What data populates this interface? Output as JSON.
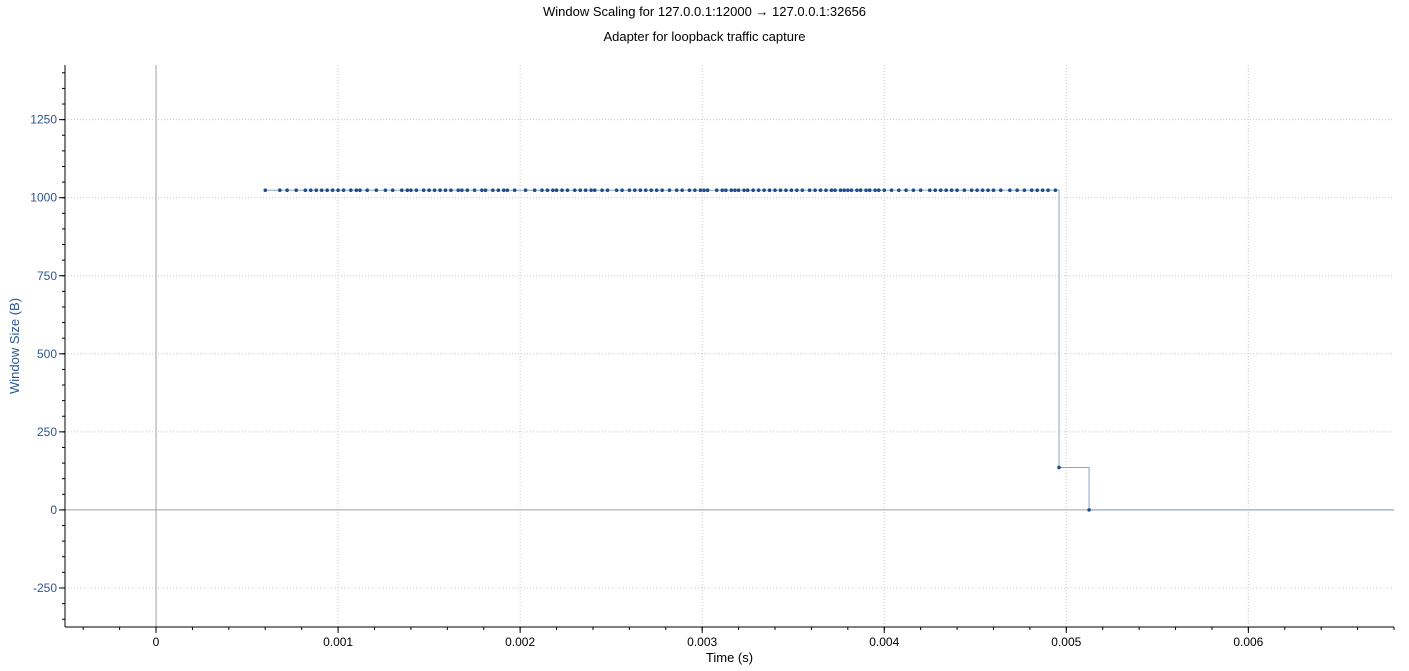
{
  "chart_data": {
    "type": "line",
    "title": "Window Scaling for 127.0.0.1:12000 → 127.0.0.1:32656",
    "subtitle": "Adapter for loopback traffic capture",
    "xlabel": "Time (s)",
    "ylabel": "Window Size (B)",
    "xlim": [
      -0.0005,
      0.0068
    ],
    "ylim": [
      -375,
      1425
    ],
    "x_ticks": [
      0,
      0.001,
      0.002,
      0.003,
      0.004,
      0.005,
      0.006
    ],
    "x_tick_labels": [
      "0",
      "0.001",
      "0.002",
      "0.003",
      "0.004",
      "0.005",
      "0.006"
    ],
    "y_ticks": [
      -250,
      0,
      250,
      500,
      750,
      1000,
      1250
    ],
    "y_tick_labels": [
      "-250",
      "0",
      "250",
      "500",
      "750",
      "1000",
      "1250"
    ],
    "grid": true,
    "step_line": true,
    "colors": {
      "points": "#1f4e8c",
      "line": "#8aa6c8",
      "axis_label": "#2b5590",
      "grid": "#c8c8c8",
      "zero_line": "#a0a0a0"
    },
    "series": [
      {
        "x": [
          0.0006,
          0.00068,
          0.00072,
          0.00077,
          0.00082,
          0.00085,
          0.00088,
          0.00091,
          0.00094,
          0.00097,
          0.001,
          0.00103,
          0.00107,
          0.0011,
          0.00112,
          0.00116,
          0.00121,
          0.00126,
          0.0013,
          0.00135,
          0.00138,
          0.0014,
          0.00143,
          0.00147,
          0.0015,
          0.00153,
          0.00156,
          0.00159,
          0.00162,
          0.00166,
          0.00168,
          0.00171,
          0.00175,
          0.00179,
          0.00181,
          0.00185,
          0.00188,
          0.00191,
          0.00193,
          0.00197,
          0.00203,
          0.00208,
          0.00212,
          0.00215,
          0.00218,
          0.0022,
          0.00223,
          0.00226,
          0.0023,
          0.00233,
          0.00236,
          0.00239,
          0.00241,
          0.00245,
          0.00248,
          0.00253,
          0.00256,
          0.0026,
          0.00263,
          0.00266,
          0.00269,
          0.00272,
          0.00275,
          0.00278,
          0.00282,
          0.00286,
          0.00289,
          0.00293,
          0.00296,
          0.00299,
          0.00301,
          0.00303,
          0.00308,
          0.00311,
          0.00313,
          0.00316,
          0.00318,
          0.0032,
          0.00323,
          0.00325,
          0.00328,
          0.00331,
          0.00334,
          0.00337,
          0.0034,
          0.00343,
          0.00346,
          0.00349,
          0.00352,
          0.00355,
          0.00359,
          0.00362,
          0.00365,
          0.00368,
          0.00371,
          0.00373,
          0.00376,
          0.00378,
          0.0038,
          0.00382,
          0.00385,
          0.00387,
          0.0039,
          0.00392,
          0.00395,
          0.00397,
          0.004,
          0.00404,
          0.00408,
          0.00412,
          0.00416,
          0.0042,
          0.00425,
          0.00428,
          0.00431,
          0.00434,
          0.00437,
          0.0044,
          0.00444,
          0.00448,
          0.00451,
          0.00454,
          0.00457,
          0.0046,
          0.00464,
          0.00469,
          0.00473,
          0.00477,
          0.00481,
          0.00484,
          0.00487,
          0.0049,
          0.00494,
          0.00496,
          0.005125
        ],
        "y": [
          1024,
          1024,
          1024,
          1024,
          1024,
          1024,
          1024,
          1024,
          1024,
          1024,
          1024,
          1024,
          1024,
          1024,
          1024,
          1024,
          1024,
          1024,
          1024,
          1024,
          1024,
          1024,
          1024,
          1024,
          1024,
          1024,
          1024,
          1024,
          1024,
          1024,
          1024,
          1024,
          1024,
          1024,
          1024,
          1024,
          1024,
          1024,
          1024,
          1024,
          1024,
          1024,
          1024,
          1024,
          1024,
          1024,
          1024,
          1024,
          1024,
          1024,
          1024,
          1024,
          1024,
          1024,
          1024,
          1024,
          1024,
          1024,
          1024,
          1024,
          1024,
          1024,
          1024,
          1024,
          1024,
          1024,
          1024,
          1024,
          1024,
          1024,
          1024,
          1024,
          1024,
          1024,
          1024,
          1024,
          1024,
          1024,
          1024,
          1024,
          1024,
          1024,
          1024,
          1024,
          1024,
          1024,
          1024,
          1024,
          1024,
          1024,
          1024,
          1024,
          1024,
          1024,
          1024,
          1024,
          1024,
          1024,
          1024,
          1024,
          1024,
          1024,
          1024,
          1024,
          1024,
          1024,
          1024,
          1024,
          1024,
          1024,
          1024,
          1024,
          1024,
          1024,
          1024,
          1024,
          1024,
          1024,
          1024,
          1024,
          1024,
          1024,
          1024,
          1024,
          1024,
          1024,
          1024,
          1024,
          1024,
          1024,
          1024,
          1024,
          1024,
          136,
          0
        ]
      }
    ]
  }
}
